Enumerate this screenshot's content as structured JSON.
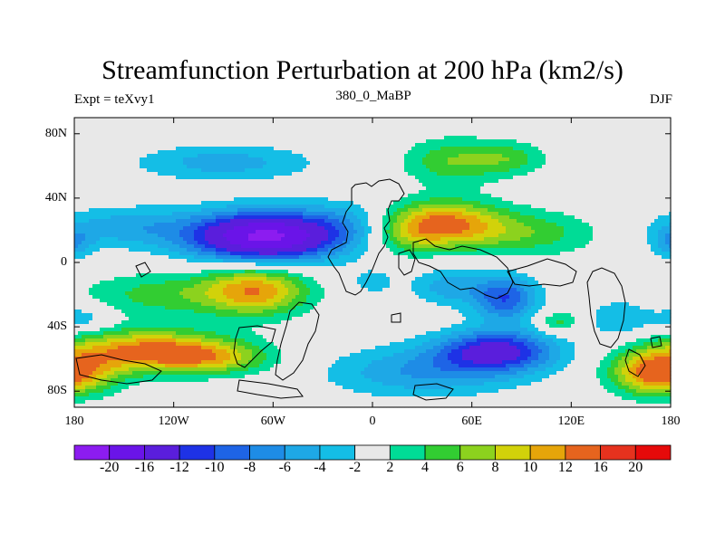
{
  "chart_data": {
    "type": "heatmap",
    "title": "Streamfunction Perturbation at 200 hPa (km2/s)",
    "subtitle_left": "Expt = teXvy1",
    "subtitle_center": "380_0_MaBP",
    "subtitle_right": "DJF",
    "x_range": [
      -180,
      180
    ],
    "y_range": [
      -90,
      90
    ],
    "x_ticks": [
      {
        "value": -180,
        "label": "180"
      },
      {
        "value": -120,
        "label": "120W"
      },
      {
        "value": -60,
        "label": "60W"
      },
      {
        "value": 0,
        "label": "0"
      },
      {
        "value": 60,
        "label": "60E"
      },
      {
        "value": 120,
        "label": "120E"
      },
      {
        "value": 180,
        "label": "180"
      }
    ],
    "y_ticks": [
      {
        "value": 80,
        "label": "80N"
      },
      {
        "value": 40,
        "label": "40N"
      },
      {
        "value": 0,
        "label": "0"
      },
      {
        "value": -40,
        "label": "40S"
      },
      {
        "value": -80,
        "label": "80S"
      }
    ],
    "levels": [
      -20,
      -16,
      -12,
      -10,
      -8,
      -6,
      -4,
      -2,
      2,
      4,
      6,
      8,
      10,
      12,
      16,
      20
    ],
    "level_labels": [
      "-20",
      "-16",
      "-12",
      "-10",
      "-8",
      "-6",
      "-4",
      "-2",
      "2",
      "4",
      "6",
      "8",
      "10",
      "12",
      "16",
      "20"
    ],
    "colors": [
      "#8C1CF0",
      "#6A14E8",
      "#5A1EDC",
      "#1E32E6",
      "#1E64E6",
      "#1E8CE6",
      "#1EA8E6",
      "#14BEE6",
      "#E8E8E8",
      "#00DC96",
      "#32CD32",
      "#8CD21E",
      "#D2D20A",
      "#E6A50A",
      "#E6641E",
      "#E6321E",
      "#E60A0A"
    ],
    "anomalies": [
      {
        "lon": -65,
        "lat": 16,
        "slon": 32,
        "slat": 11,
        "amp": -21
      },
      {
        "lon": -150,
        "lat": 22,
        "slon": 30,
        "slat": 9,
        "amp": -5
      },
      {
        "lon": -10,
        "lat": 25,
        "slon": 22,
        "slat": 10,
        "amp": -4
      },
      {
        "lon": -90,
        "lat": 62,
        "slon": 38,
        "slat": 8,
        "amp": -5
      },
      {
        "lon": 40,
        "lat": 24,
        "slon": 26,
        "slat": 10,
        "amp": 13
      },
      {
        "lon": 95,
        "lat": 18,
        "slon": 30,
        "slat": 10,
        "amp": 5
      },
      {
        "lon": 20,
        "lat": 14,
        "slon": 14,
        "slat": 8,
        "amp": 3
      },
      {
        "lon": 50,
        "lat": 63,
        "slon": 22,
        "slat": 10,
        "amp": 6
      },
      {
        "lon": 85,
        "lat": 65,
        "slon": 15,
        "slat": 7,
        "amp": 4
      },
      {
        "lon": -70,
        "lat": -17,
        "slon": 22,
        "slat": 11,
        "amp": 11
      },
      {
        "lon": -125,
        "lat": -20,
        "slon": 35,
        "slat": 10,
        "amp": 5
      },
      {
        "lon": -135,
        "lat": -55,
        "slon": 35,
        "slat": 9,
        "amp": 13
      },
      {
        "lon": -95,
        "lat": -60,
        "slon": 25,
        "slat": 7,
        "amp": 6
      },
      {
        "lon": -180,
        "lat": -70,
        "slon": 20,
        "slat": 9,
        "amp": 7
      },
      {
        "lon": -175,
        "lat": -35,
        "slon": 12,
        "slat": 6,
        "amp": -4
      },
      {
        "lon": 75,
        "lat": -55,
        "slon": 25,
        "slat": 9,
        "amp": -13
      },
      {
        "lon": 30,
        "lat": -68,
        "slon": 40,
        "slat": 11,
        "amp": -6
      },
      {
        "lon": 80,
        "lat": -22,
        "slon": 14,
        "slat": 10,
        "amp": -10
      },
      {
        "lon": 45,
        "lat": -15,
        "slon": 15,
        "slat": 8,
        "amp": -5
      },
      {
        "lon": 0,
        "lat": -12,
        "slon": 10,
        "slat": 6,
        "amp": -3
      },
      {
        "lon": 112,
        "lat": -37,
        "slon": 9,
        "slat": 5,
        "amp": 5
      },
      {
        "lon": 168,
        "lat": -68,
        "slon": 18,
        "slat": 10,
        "amp": 8
      },
      {
        "lon": 150,
        "lat": -35,
        "slon": 14,
        "slat": 9,
        "amp": -4
      },
      {
        "lon": 180,
        "lat": 12,
        "slon": 8,
        "slat": 7,
        "amp": -5
      }
    ]
  }
}
